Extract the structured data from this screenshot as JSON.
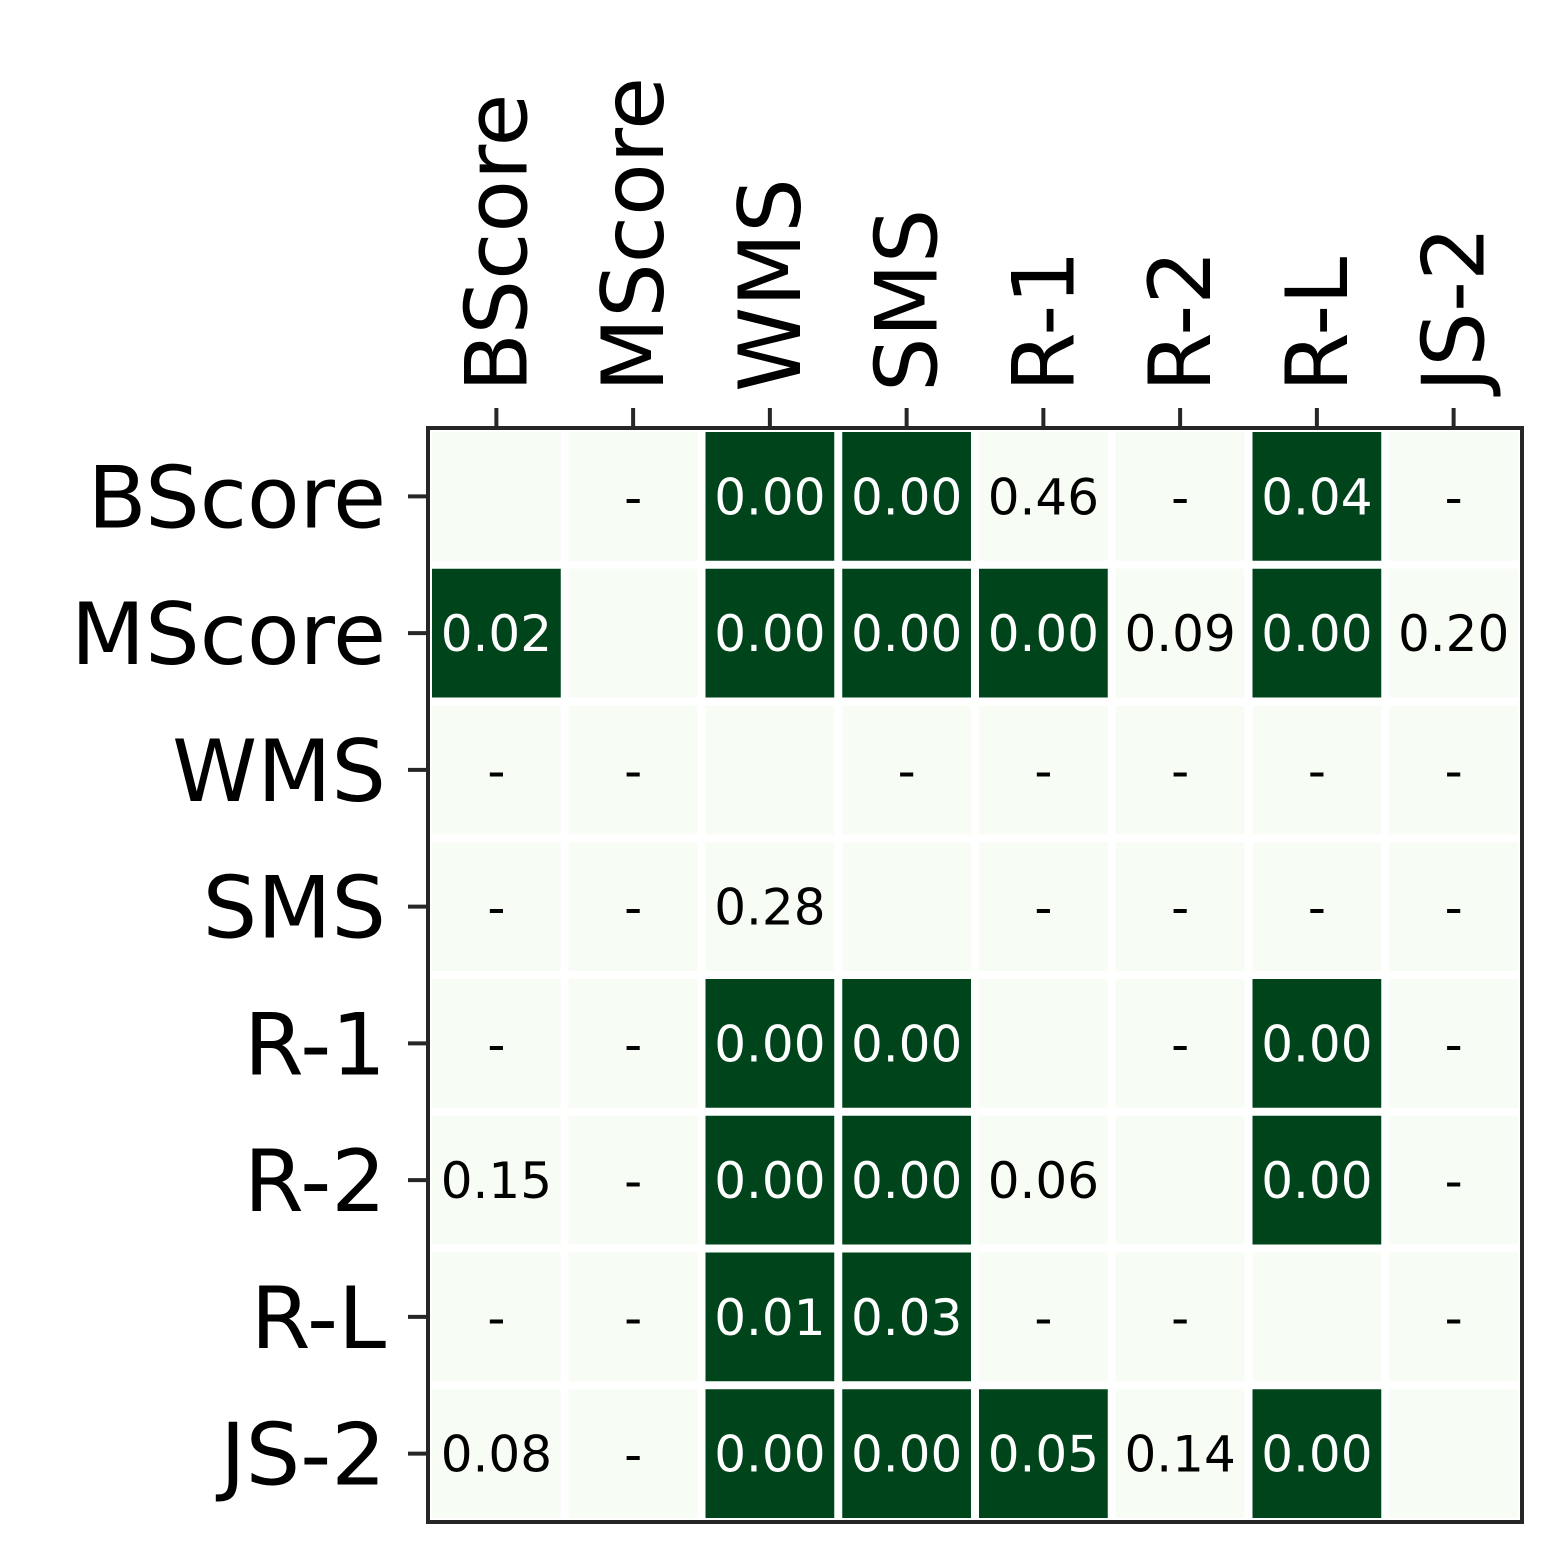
{
  "chart_data": {
    "type": "heatmap",
    "x_labels": [
      "BScore",
      "MScore",
      "WMS",
      "SMS",
      "R-1",
      "R-2",
      "R-L",
      "JS-2"
    ],
    "y_labels": [
      "BScore",
      "MScore",
      "WMS",
      "SMS",
      "R-1",
      "R-2",
      "R-L",
      "JS-2"
    ],
    "x_label_position": "top",
    "x_label_rotation": "vertical",
    "significance_threshold": 0.05,
    "cells": [
      [
        null,
        "-",
        "0.00",
        "0.00",
        "0.46",
        "-",
        "0.04",
        "-"
      ],
      [
        "0.02",
        null,
        "0.00",
        "0.00",
        "0.00",
        "0.09",
        "0.00",
        "0.20"
      ],
      [
        "-",
        "-",
        null,
        "-",
        "-",
        "-",
        "-",
        "-"
      ],
      [
        "-",
        "-",
        "0.28",
        null,
        "-",
        "-",
        "-",
        "-"
      ],
      [
        "-",
        "-",
        "0.00",
        "0.00",
        null,
        "-",
        "0.00",
        "-"
      ],
      [
        "0.15",
        "-",
        "0.00",
        "0.00",
        "0.06",
        null,
        "0.00",
        "-"
      ],
      [
        "-",
        "-",
        "0.01",
        "0.03",
        "-",
        "-",
        null,
        "-"
      ],
      [
        "0.08",
        "-",
        "0.00",
        "0.00",
        "0.05",
        "0.14",
        "0.00",
        null
      ]
    ],
    "colors": {
      "significant": "#00441b",
      "not_significant": "#f7fcf5",
      "text_on_dark": "#ffffff",
      "text_on_light": "#000000",
      "frame": "#262626"
    },
    "grid": false,
    "legend": "none"
  }
}
